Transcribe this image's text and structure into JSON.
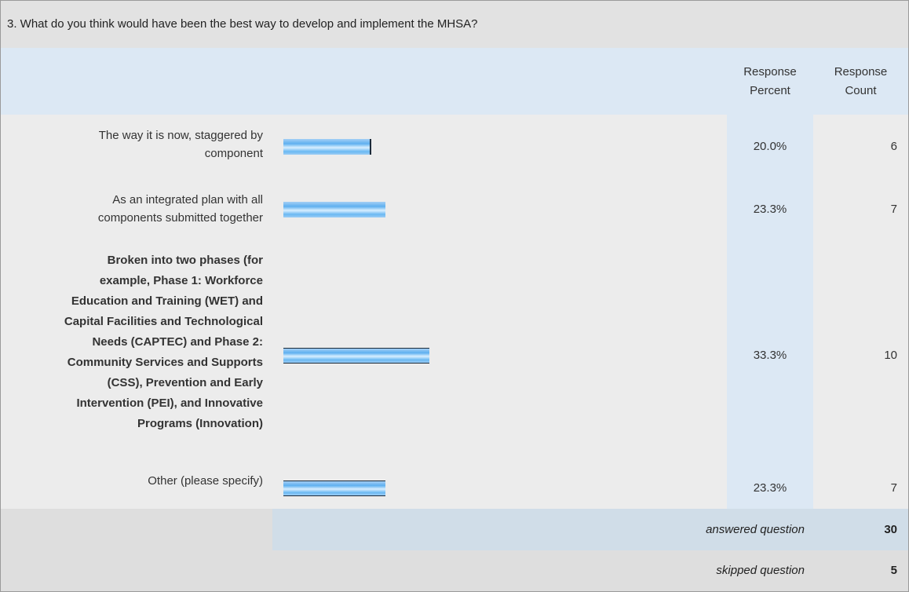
{
  "question": "3. What do you think would have been the best way to develop and implement the MHSA?",
  "header": {
    "percent_label": [
      "Response",
      "Percent"
    ],
    "count_label": [
      "Response",
      "Count"
    ]
  },
  "colors": {
    "header_band": "#dce8f4",
    "body_bg": "#ececec",
    "bar_blue": "#5fb0f0",
    "summary_band": "#d0dde8"
  },
  "chart_data": {
    "type": "bar",
    "title": "3. What do you think would have been the best way to develop and implement the MHSA?",
    "categories": [
      "The way it is now, staggered by component",
      "As an integrated plan with all components submitted together",
      "Broken into two phases (for example, Phase 1: Workforce Education and Training (WET) and Capital Facilities and Technological Needs (CAPTEC) and Phase 2: Community Services and Supports (CSS), Prevention and Early Intervention (PEI), and Innovative Programs (Innovation)",
      "Other (please specify)"
    ],
    "series": [
      {
        "name": "Response Percent",
        "values": [
          20.0,
          23.3,
          33.3,
          23.3
        ]
      },
      {
        "name": "Response Count",
        "values": [
          6,
          7,
          10,
          7
        ]
      }
    ],
    "rows": [
      {
        "lines": [
          "The way it is now, staggered by",
          "component"
        ],
        "bold": false,
        "percent": 20.0,
        "percent_text": "20.0%",
        "count": "6"
      },
      {
        "lines": [
          "As an integrated plan with all",
          "components submitted together"
        ],
        "bold": false,
        "percent": 23.3,
        "percent_text": "23.3%",
        "count": "7"
      },
      {
        "lines": [
          "Broken into two phases (for",
          "example, Phase 1: Workforce",
          "Education and Training (WET) and",
          "Capital Facilities and Technological",
          "Needs (CAPTEC) and Phase 2:",
          "Community Services and Supports",
          "(CSS), Prevention and Early",
          "Intervention (PEI), and Innovative",
          "Programs (Innovation)"
        ],
        "bold": true,
        "percent": 33.3,
        "percent_text": "33.3%",
        "count": "10"
      },
      {
        "lines": [
          "Other (please specify)"
        ],
        "bold": false,
        "percent": 23.3,
        "percent_text": "23.3%",
        "count": "7"
      }
    ]
  },
  "summary": {
    "answered": {
      "label": "answered question",
      "value": "30"
    },
    "skipped": {
      "label": "skipped question",
      "value": "5"
    }
  }
}
